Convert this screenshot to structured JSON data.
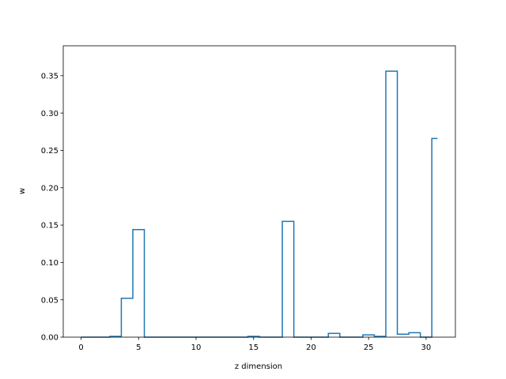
{
  "chart_data": {
    "type": "line",
    "style": "step",
    "title": "",
    "xlabel": "z dimension",
    "ylabel": "w",
    "xlim": [
      -1.55,
      32.55
    ],
    "ylim": [
      0,
      0.39
    ],
    "grid": false,
    "x_ticks": [
      0,
      5,
      10,
      15,
      20,
      25,
      30
    ],
    "y_ticks": [
      0.0,
      0.05,
      0.1,
      0.15,
      0.2,
      0.25,
      0.3,
      0.35
    ],
    "y_tick_labels": [
      "0.00",
      "0.05",
      "0.10",
      "0.15",
      "0.20",
      "0.25",
      "0.30",
      "0.35"
    ],
    "series": [
      {
        "color": "#1f77b4",
        "x": [
          0,
          1,
          2,
          3,
          4,
          5,
          6,
          7,
          8,
          9,
          10,
          11,
          12,
          13,
          14,
          15,
          16,
          17,
          18,
          19,
          20,
          21,
          22,
          23,
          24,
          25,
          26,
          27,
          28,
          29,
          30,
          31
        ],
        "y": [
          0,
          0,
          0,
          0.001,
          0.052,
          0.144,
          0,
          0,
          0,
          0,
          0,
          0,
          0,
          0,
          0,
          0.001,
          0,
          0,
          0.155,
          0,
          0,
          0,
          0.005,
          0,
          0,
          0.003,
          0.001,
          0.356,
          0.004,
          0.006,
          0,
          0.266
        ]
      }
    ]
  }
}
